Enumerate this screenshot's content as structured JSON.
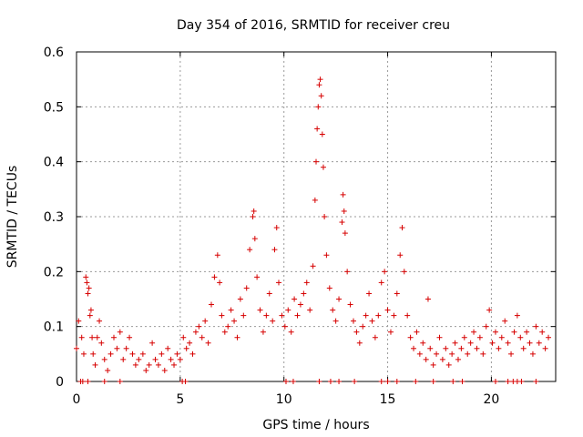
{
  "chart_data": {
    "type": "scatter",
    "title": "Day 354 of 2016, SRMTID for receiver creu",
    "xlabel": "GPS time / hours",
    "ylabel": "SRMTID / TECUs",
    "xlim": [
      0,
      23.1
    ],
    "ylim": [
      0,
      0.6
    ],
    "x_ticks": [
      0,
      5,
      10,
      15,
      20
    ],
    "x_tick_labels": [
      "0",
      "5",
      "10",
      "15",
      "20"
    ],
    "y_ticks": [
      0,
      0.1,
      0.2,
      0.3,
      0.4,
      0.5,
      0.6
    ],
    "y_tick_labels": [
      "0",
      "0.1",
      "0.2",
      "0.3",
      "0.4",
      "0.5",
      "0.6"
    ],
    "grid": true,
    "marker": "+",
    "colors": {
      "series": "#d60000",
      "grid": "#9a9a9a",
      "frame": "#000000"
    },
    "series": [
      {
        "name": "SRMTID",
        "points": [
          [
            0.0,
            0.06
          ],
          [
            0.1,
            0.11
          ],
          [
            0.2,
            0.0
          ],
          [
            0.25,
            0.08
          ],
          [
            0.35,
            0.05
          ],
          [
            0.45,
            0.19
          ],
          [
            0.5,
            0.18
          ],
          [
            0.55,
            0.16
          ],
          [
            0.6,
            0.17
          ],
          [
            0.65,
            0.12
          ],
          [
            0.7,
            0.13
          ],
          [
            0.75,
            0.08
          ],
          [
            0.8,
            0.05
          ],
          [
            0.9,
            0.03
          ],
          [
            1.0,
            0.08
          ],
          [
            1.1,
            0.11
          ],
          [
            1.2,
            0.07
          ],
          [
            1.35,
            0.04
          ],
          [
            1.5,
            0.02
          ],
          [
            1.65,
            0.05
          ],
          [
            1.8,
            0.08
          ],
          [
            1.95,
            0.06
          ],
          [
            2.1,
            0.09
          ],
          [
            2.25,
            0.04
          ],
          [
            2.4,
            0.06
          ],
          [
            2.55,
            0.08
          ],
          [
            2.7,
            0.05
          ],
          [
            2.85,
            0.03
          ],
          [
            3.0,
            0.04
          ],
          [
            3.2,
            0.05
          ],
          [
            3.35,
            0.02
          ],
          [
            3.5,
            0.03
          ],
          [
            3.65,
            0.07
          ],
          [
            3.8,
            0.04
          ],
          [
            3.95,
            0.03
          ],
          [
            4.1,
            0.05
          ],
          [
            4.25,
            0.02
          ],
          [
            4.4,
            0.06
          ],
          [
            4.55,
            0.04
          ],
          [
            4.7,
            0.03
          ],
          [
            4.85,
            0.05
          ],
          [
            5.0,
            0.04
          ],
          [
            5.15,
            0.08
          ],
          [
            5.3,
            0.06
          ],
          [
            5.45,
            0.07
          ],
          [
            5.6,
            0.05
          ],
          [
            5.75,
            0.09
          ],
          [
            5.9,
            0.1
          ],
          [
            6.05,
            0.08
          ],
          [
            6.2,
            0.11
          ],
          [
            6.35,
            0.07
          ],
          [
            6.5,
            0.14
          ],
          [
            6.65,
            0.19
          ],
          [
            6.8,
            0.23
          ],
          [
            6.9,
            0.18
          ],
          [
            7.0,
            0.12
          ],
          [
            7.15,
            0.09
          ],
          [
            7.3,
            0.1
          ],
          [
            7.45,
            0.13
          ],
          [
            7.6,
            0.11
          ],
          [
            7.75,
            0.08
          ],
          [
            7.9,
            0.15
          ],
          [
            8.05,
            0.12
          ],
          [
            8.2,
            0.17
          ],
          [
            8.35,
            0.24
          ],
          [
            8.5,
            0.3
          ],
          [
            8.55,
            0.31
          ],
          [
            8.6,
            0.26
          ],
          [
            8.7,
            0.19
          ],
          [
            8.85,
            0.13
          ],
          [
            9.0,
            0.09
          ],
          [
            9.15,
            0.12
          ],
          [
            9.3,
            0.16
          ],
          [
            9.45,
            0.11
          ],
          [
            9.55,
            0.24
          ],
          [
            9.65,
            0.28
          ],
          [
            9.75,
            0.18
          ],
          [
            9.9,
            0.12
          ],
          [
            10.05,
            0.1
          ],
          [
            10.2,
            0.13
          ],
          [
            10.35,
            0.09
          ],
          [
            10.5,
            0.15
          ],
          [
            10.65,
            0.12
          ],
          [
            10.8,
            0.14
          ],
          [
            10.95,
            0.16
          ],
          [
            11.1,
            0.18
          ],
          [
            11.25,
            0.13
          ],
          [
            11.4,
            0.21
          ],
          [
            11.5,
            0.33
          ],
          [
            11.55,
            0.4
          ],
          [
            11.6,
            0.46
          ],
          [
            11.65,
            0.5
          ],
          [
            11.7,
            0.54
          ],
          [
            11.75,
            0.55
          ],
          [
            11.8,
            0.52
          ],
          [
            11.85,
            0.45
          ],
          [
            11.9,
            0.39
          ],
          [
            11.95,
            0.3
          ],
          [
            12.05,
            0.23
          ],
          [
            12.2,
            0.17
          ],
          [
            12.35,
            0.13
          ],
          [
            12.5,
            0.11
          ],
          [
            12.65,
            0.15
          ],
          [
            12.8,
            0.29
          ],
          [
            12.85,
            0.34
          ],
          [
            12.9,
            0.31
          ],
          [
            12.95,
            0.27
          ],
          [
            13.05,
            0.2
          ],
          [
            13.2,
            0.14
          ],
          [
            13.35,
            0.11
          ],
          [
            13.5,
            0.09
          ],
          [
            13.65,
            0.07
          ],
          [
            13.8,
            0.1
          ],
          [
            13.95,
            0.12
          ],
          [
            14.1,
            0.16
          ],
          [
            14.25,
            0.11
          ],
          [
            14.4,
            0.08
          ],
          [
            14.55,
            0.12
          ],
          [
            14.7,
            0.18
          ],
          [
            14.85,
            0.2
          ],
          [
            15.0,
            0.13
          ],
          [
            15.15,
            0.09
          ],
          [
            15.3,
            0.12
          ],
          [
            15.45,
            0.16
          ],
          [
            15.6,
            0.23
          ],
          [
            15.7,
            0.28
          ],
          [
            15.8,
            0.2
          ],
          [
            15.95,
            0.12
          ],
          [
            16.1,
            0.08
          ],
          [
            16.25,
            0.06
          ],
          [
            16.4,
            0.09
          ],
          [
            16.55,
            0.05
          ],
          [
            16.7,
            0.07
          ],
          [
            16.85,
            0.04
          ],
          [
            16.95,
            0.15
          ],
          [
            17.05,
            0.06
          ],
          [
            17.2,
            0.03
          ],
          [
            17.35,
            0.05
          ],
          [
            17.5,
            0.08
          ],
          [
            17.65,
            0.04
          ],
          [
            17.8,
            0.06
          ],
          [
            17.95,
            0.03
          ],
          [
            18.1,
            0.05
          ],
          [
            18.25,
            0.07
          ],
          [
            18.4,
            0.04
          ],
          [
            18.55,
            0.06
          ],
          [
            18.7,
            0.08
          ],
          [
            18.85,
            0.05
          ],
          [
            19.0,
            0.07
          ],
          [
            19.15,
            0.09
          ],
          [
            19.3,
            0.06
          ],
          [
            19.45,
            0.08
          ],
          [
            19.6,
            0.05
          ],
          [
            19.75,
            0.1
          ],
          [
            19.9,
            0.13
          ],
          [
            20.05,
            0.07
          ],
          [
            20.2,
            0.09
          ],
          [
            20.35,
            0.06
          ],
          [
            20.5,
            0.08
          ],
          [
            20.65,
            0.11
          ],
          [
            20.8,
            0.07
          ],
          [
            20.95,
            0.05
          ],
          [
            21.1,
            0.09
          ],
          [
            21.25,
            0.12
          ],
          [
            21.4,
            0.08
          ],
          [
            21.55,
            0.06
          ],
          [
            21.7,
            0.09
          ],
          [
            21.85,
            0.07
          ],
          [
            22.0,
            0.05
          ],
          [
            22.15,
            0.1
          ],
          [
            22.3,
            0.07
          ],
          [
            22.45,
            0.09
          ],
          [
            22.6,
            0.06
          ],
          [
            22.75,
            0.08
          ],
          [
            0.3,
            0.0
          ],
          [
            0.55,
            0.0
          ],
          [
            1.35,
            0.0
          ],
          [
            2.1,
            0.0
          ],
          [
            5.1,
            0.0
          ],
          [
            5.25,
            0.0
          ],
          [
            10.1,
            0.0
          ],
          [
            10.45,
            0.0
          ],
          [
            11.7,
            0.0
          ],
          [
            12.25,
            0.0
          ],
          [
            12.65,
            0.0
          ],
          [
            13.4,
            0.0
          ],
          [
            14.7,
            0.0
          ],
          [
            15.0,
            0.0
          ],
          [
            15.45,
            0.0
          ],
          [
            16.35,
            0.0
          ],
          [
            17.2,
            0.0
          ],
          [
            18.15,
            0.0
          ],
          [
            18.6,
            0.0
          ],
          [
            20.2,
            0.0
          ],
          [
            20.8,
            0.0
          ],
          [
            21.05,
            0.0
          ],
          [
            21.25,
            0.0
          ],
          [
            21.45,
            0.0
          ],
          [
            22.15,
            0.0
          ]
        ]
      }
    ]
  }
}
